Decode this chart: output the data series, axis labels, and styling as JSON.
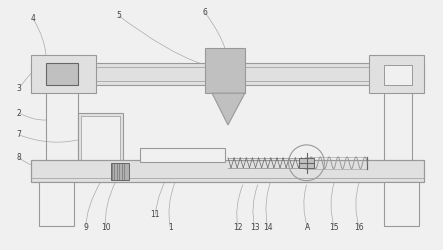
{
  "bg_color": "#f0f0f0",
  "line_color": "#999999",
  "dark_line": "#666666",
  "fill_light": "#e0e0e0",
  "fill_gray": "#c0c0c0",
  "fill_dark": "#b0b0b0"
}
